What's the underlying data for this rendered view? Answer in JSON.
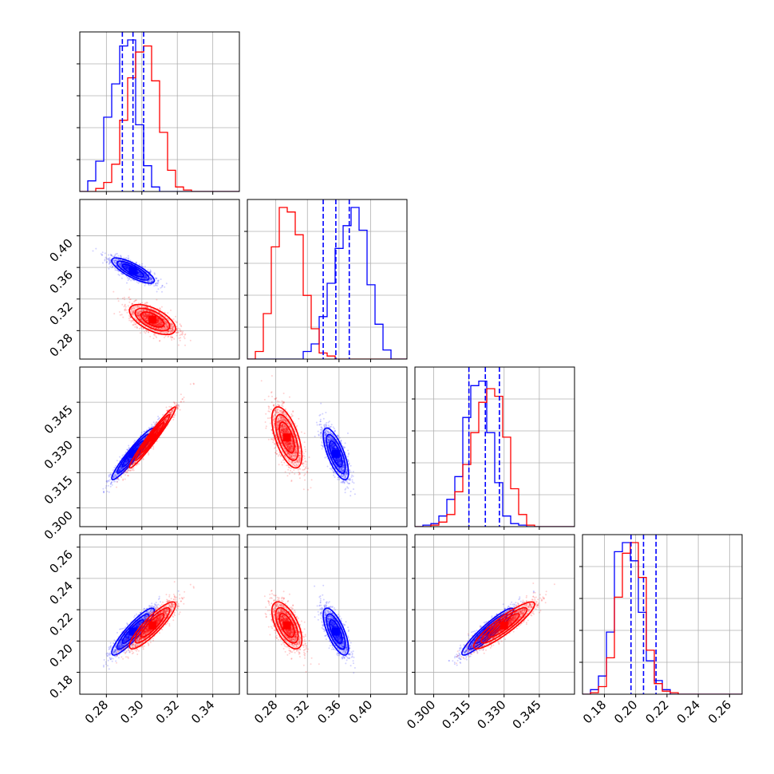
{
  "colors": {
    "blue": "#0000ff",
    "red": "#ff0000",
    "grid": "#b0b0b0"
  },
  "chart_data": {
    "type": "corner",
    "series": [
      {
        "color": "#0000ff",
        "means": [
          0.295,
          0.356,
          0.323,
          0.206
        ],
        "sigmas": [
          0.006,
          0.008,
          0.0055,
          0.0075
        ],
        "corr": [
          [
            1,
            -0.8,
            0.95,
            0.9
          ],
          [
            -0.8,
            1,
            -0.72,
            -0.7
          ],
          [
            0.95,
            -0.72,
            1,
            0.93
          ],
          [
            0.9,
            -0.7,
            0.93,
            1
          ]
        ],
        "quantiles": [
          [
            0.289,
            0.295,
            0.301
          ],
          [
            0.34,
            0.356,
            0.373
          ],
          [
            0.315,
            0.322,
            0.328
          ],
          [
            0.197,
            0.205,
            0.213
          ]
        ]
      },
      {
        "color": "#ff0000",
        "means": [
          0.306,
          0.294,
          0.33,
          0.21
        ],
        "sigmas": [
          0.0065,
          0.0095,
          0.0065,
          0.0075
        ],
        "corr": [
          [
            1,
            -0.6,
            0.97,
            0.88
          ],
          [
            -0.6,
            1,
            -0.6,
            -0.6
          ],
          [
            0.97,
            -0.6,
            1,
            0.9
          ],
          [
            0.88,
            -0.6,
            0.9,
            1
          ]
        ]
      }
    ],
    "hist": [
      {
        "range": [
          0.265,
          0.355
        ],
        "blue": [
          0,
          0.07,
          0.2,
          0.49,
          0.71,
          0.96,
          1.0,
          0.44,
          0.17,
          0.03,
          0,
          0,
          0,
          0,
          0,
          0,
          0,
          0,
          0,
          0
        ],
        "red": [
          0,
          0,
          0.02,
          0.06,
          0.18,
          0.47,
          0.75,
          0.92,
          0.96,
          0.73,
          0.39,
          0.14,
          0.03,
          0.01,
          0,
          0,
          0,
          0,
          0,
          0
        ]
      },
      {
        "range": [
          0.244,
          0.446
        ],
        "blue": [
          0,
          0,
          0,
          0,
          0,
          0,
          0,
          0.05,
          0.1,
          0.28,
          0.5,
          0.73,
          0.88,
          1.0,
          0.85,
          0.49,
          0.23,
          0.06,
          0,
          0
        ],
        "red": [
          0,
          0.05,
          0.3,
          0.74,
          1.0,
          0.97,
          0.82,
          0.42,
          0.2,
          0.04,
          0.02,
          0,
          0,
          0,
          0,
          0,
          0,
          0,
          0,
          0
        ]
      },
      {
        "range": [
          0.292,
          0.36
        ],
        "blue": [
          0,
          0.01,
          0.02,
          0.07,
          0.18,
          0.33,
          0.72,
          0.93,
          0.96,
          0.62,
          0.29,
          0.07,
          0.02,
          0.01,
          0,
          0,
          0,
          0,
          0,
          0
        ],
        "red": [
          0,
          0,
          0.01,
          0.03,
          0.08,
          0.23,
          0.41,
          0.62,
          0.82,
          0.91,
          0.86,
          0.59,
          0.25,
          0.08,
          0.01,
          0,
          0,
          0,
          0,
          0
        ]
      },
      {
        "range": [
          0.166,
          0.268
        ],
        "blue": [
          0,
          0.03,
          0.12,
          0.41,
          0.94,
          1.0,
          0.88,
          0.54,
          0.22,
          0.09,
          0.03,
          0,
          0,
          0,
          0,
          0,
          0,
          0,
          0,
          0
        ],
        "red": [
          0,
          0.01,
          0.05,
          0.24,
          0.64,
          0.93,
          1.0,
          0.77,
          0.29,
          0.07,
          0.02,
          0.01,
          0,
          0,
          0,
          0,
          0,
          0,
          0,
          0
        ]
      }
    ],
    "axes": [
      {
        "range": [
          0.265,
          0.355
        ],
        "ticks": [
          0.28,
          0.3,
          0.32,
          0.34
        ],
        "labels": [
          "0.28",
          "0.30",
          "0.32",
          "0.34"
        ]
      },
      {
        "range": [
          0.244,
          0.446
        ],
        "ticks": [
          0.28,
          0.32,
          0.36,
          0.4
        ],
        "labels": [
          "0.28",
          "0.32",
          "0.36",
          "0.40"
        ]
      },
      {
        "range": [
          0.292,
          0.36
        ],
        "ticks": [
          0.3,
          0.315,
          0.33,
          0.345
        ],
        "labels": [
          "0.300",
          "0.315",
          "0.330",
          "0.345"
        ]
      },
      {
        "range": [
          0.166,
          0.268
        ],
        "ticks": [
          0.18,
          0.2,
          0.22,
          0.24,
          0.26
        ],
        "labels": [
          "0.18",
          "0.20",
          "0.22",
          "0.24",
          "0.26"
        ]
      }
    ],
    "grid": true
  }
}
